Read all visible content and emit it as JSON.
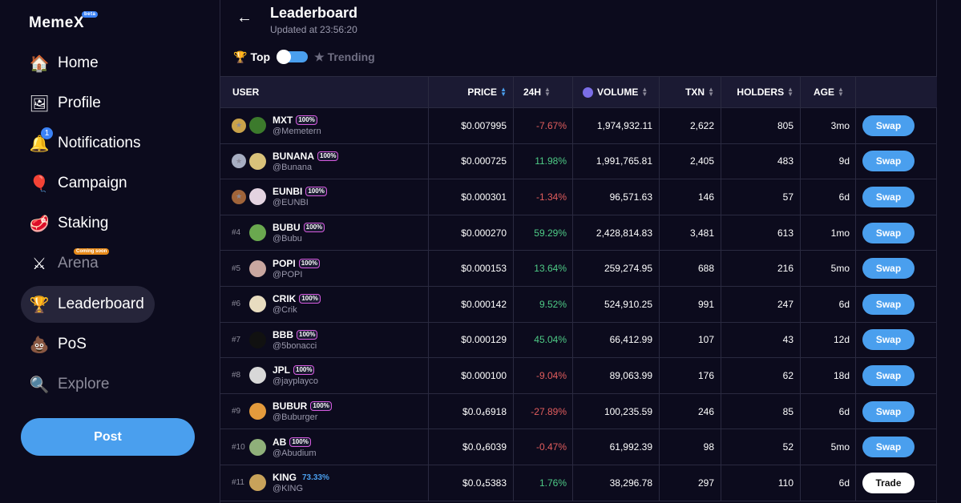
{
  "app": {
    "logo": "MemeX",
    "logo_badge": "beta"
  },
  "sidebar": {
    "items": [
      {
        "label": "Home",
        "icon": "home-icon"
      },
      {
        "label": "Profile",
        "icon": "profile-icon"
      },
      {
        "label": "Notifications",
        "icon": "bell-icon",
        "badge": "1"
      },
      {
        "label": "Campaign",
        "icon": "balloon-icon"
      },
      {
        "label": "Staking",
        "icon": "steak-icon"
      },
      {
        "label": "Arena",
        "icon": "swords-icon",
        "tag": "Coming soon"
      },
      {
        "label": "Leaderboard",
        "icon": "podium-icon"
      },
      {
        "label": "PoS",
        "icon": "poop-icon"
      },
      {
        "label": "Explore",
        "icon": "magnifier-icon"
      }
    ],
    "post_label": "Post"
  },
  "header": {
    "title": "Leaderboard",
    "updated": "Updated at 23:56:20",
    "tab_top": "Top",
    "tab_trending": "Trending"
  },
  "table": {
    "columns": [
      "USER",
      "PRICE",
      "24H",
      "VOLUME",
      "TXN",
      "HOLDERS",
      "AGE"
    ],
    "rows": [
      {
        "rank": "",
        "medal": "gold",
        "name": "MXT",
        "badge": "100%",
        "handle": "@Memetern",
        "price": "$0.007995",
        "change": "-7.67%",
        "dir": "neg",
        "volume": "1,974,932.11",
        "txn": "2,622",
        "holders": "805",
        "age": "3mo",
        "action": "Swap",
        "avatar": "#3c7a2c"
      },
      {
        "rank": "",
        "medal": "silver",
        "name": "BUNANA",
        "badge": "100%",
        "handle": "@Bunana",
        "price": "$0.000725",
        "change": "11.98%",
        "dir": "pos",
        "volume": "1,991,765.81",
        "txn": "2,405",
        "holders": "483",
        "age": "9d",
        "action": "Swap",
        "avatar": "#d9c27a"
      },
      {
        "rank": "",
        "medal": "bronze",
        "name": "EUNBI",
        "badge": "100%",
        "handle": "@EUNBI",
        "price": "$0.000301",
        "change": "-1.34%",
        "dir": "neg",
        "volume": "96,571.63",
        "txn": "146",
        "holders": "57",
        "age": "6d",
        "action": "Swap",
        "avatar": "#e3d3e0"
      },
      {
        "rank": "#4",
        "medal": "",
        "name": "BUBU",
        "badge": "100%",
        "handle": "@Bubu",
        "price": "$0.000270",
        "change": "59.29%",
        "dir": "pos",
        "volume": "2,428,814.83",
        "txn": "3,481",
        "holders": "613",
        "age": "1mo",
        "action": "Swap",
        "avatar": "#6aa84f"
      },
      {
        "rank": "#5",
        "medal": "",
        "name": "POPI",
        "badge": "100%",
        "handle": "@POPI",
        "price": "$0.000153",
        "change": "13.64%",
        "dir": "pos",
        "volume": "259,274.95",
        "txn": "688",
        "holders": "216",
        "age": "5mo",
        "action": "Swap",
        "avatar": "#c9a7a0"
      },
      {
        "rank": "#6",
        "medal": "",
        "name": "CRIK",
        "badge": "100%",
        "handle": "@Crik",
        "price": "$0.000142",
        "change": "9.52%",
        "dir": "pos",
        "volume": "524,910.25",
        "txn": "991",
        "holders": "247",
        "age": "6d",
        "action": "Swap",
        "avatar": "#e8dcc0"
      },
      {
        "rank": "#7",
        "medal": "",
        "name": "BBB",
        "badge": "100%",
        "handle": "@5bonacci",
        "price": "$0.000129",
        "change": "45.04%",
        "dir": "pos",
        "volume": "66,412.99",
        "txn": "107",
        "holders": "43",
        "age": "12d",
        "action": "Swap",
        "avatar": "#111111"
      },
      {
        "rank": "#8",
        "medal": "",
        "name": "JPL",
        "badge": "100%",
        "handle": "@jayplayco",
        "price": "$0.000100",
        "change": "-9.04%",
        "dir": "neg",
        "volume": "89,063.99",
        "txn": "176",
        "holders": "62",
        "age": "18d",
        "action": "Swap",
        "avatar": "#d8d8d8"
      },
      {
        "rank": "#9",
        "medal": "",
        "name": "BUBUR",
        "badge": "100%",
        "handle": "@Buburger",
        "price": "$0.0₄6918",
        "change": "-27.89%",
        "dir": "neg",
        "volume": "100,235.59",
        "txn": "246",
        "holders": "85",
        "age": "6d",
        "action": "Swap",
        "avatar": "#e39a3c"
      },
      {
        "rank": "#10",
        "medal": "",
        "name": "AB",
        "badge": "100%",
        "handle": "@Abudium",
        "price": "$0.0₄6039",
        "change": "-0.47%",
        "dir": "neg",
        "volume": "61,992.39",
        "txn": "98",
        "holders": "52",
        "age": "5mo",
        "action": "Swap",
        "avatar": "#8fb07a"
      },
      {
        "rank": "#11",
        "medal": "",
        "name": "KING",
        "badge": "",
        "pct": "73.33%",
        "handle": "@KING",
        "price": "$0.0₄5383",
        "change": "1.76%",
        "dir": "pos",
        "volume": "38,296.78",
        "txn": "297",
        "holders": "110",
        "age": "6d",
        "action": "Trade",
        "avatar": "#c8a25a"
      }
    ]
  },
  "colors": {
    "accent": "#4a9fee",
    "negative": "#e25d5d",
    "positive": "#4ecb86",
    "background": "#0c0b1d"
  }
}
